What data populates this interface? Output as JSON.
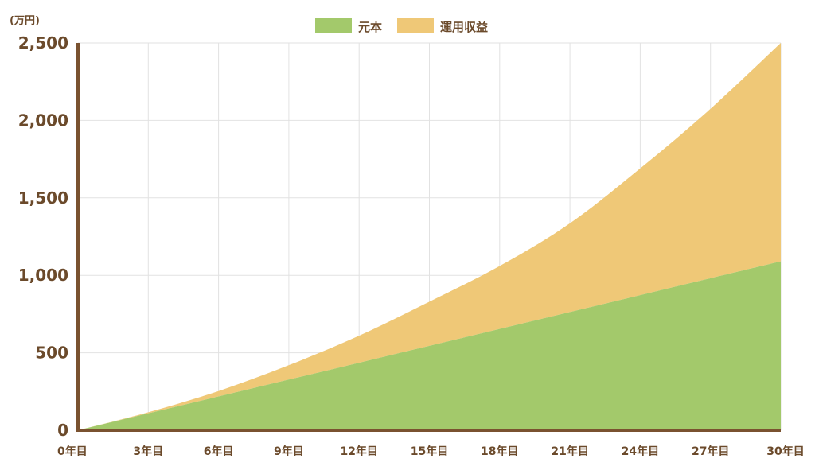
{
  "chart_data": {
    "type": "area",
    "stacked": true,
    "unit_label": "(万円)",
    "x": [
      "0年目",
      "3年目",
      "6年目",
      "9年目",
      "12年目",
      "15年目",
      "18年目",
      "21年目",
      "24年目",
      "27年目",
      "30年目"
    ],
    "yticks": [
      "0",
      "500",
      "1,000",
      "1,500",
      "2,000",
      "2,500"
    ],
    "ylim": [
      0,
      2500
    ],
    "grid": true,
    "legend_position": "top-center",
    "series": [
      {
        "name": "元本",
        "color": "#a3c96b",
        "values": [
          0,
          109,
          218,
          327,
          436,
          545,
          654,
          763,
          872,
          981,
          1090
        ]
      },
      {
        "name": "運用収益",
        "color": "#efc877",
        "values": [
          0,
          7,
          35,
          93,
          174,
          285,
          406,
          573,
          818,
          1094,
          1410
        ]
      }
    ],
    "totals": [
      0,
      116,
      253,
      420,
      610,
      830,
      1060,
      1336,
      1690,
      2075,
      2500
    ]
  }
}
